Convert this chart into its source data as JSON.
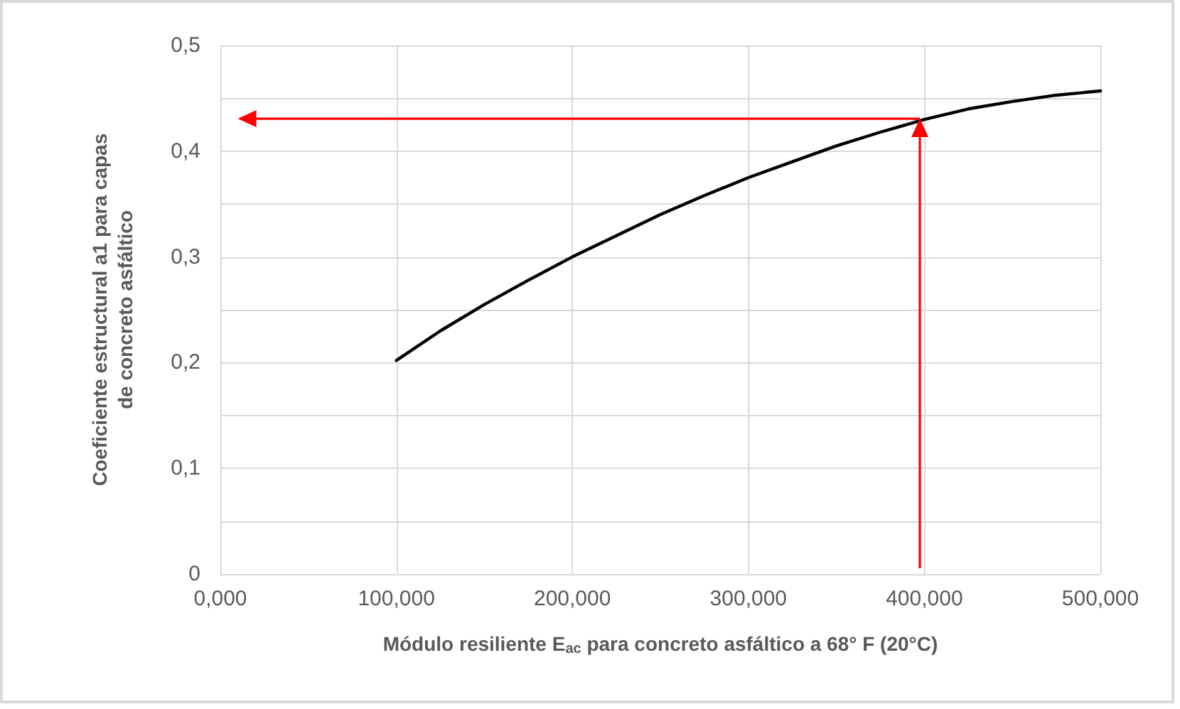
{
  "chart_data": {
    "type": "line",
    "xlabel": "Módulo resiliente E$_{ac}$ para concreto asfáltico a 68° F (20°C)",
    "ylabel": "Coeficiente estructural a1 para capas de concreto asfáltico",
    "series": [
      {
        "color": "#000000",
        "x": [
          100,
          125,
          150,
          175,
          200,
          225,
          250,
          275,
          300,
          325,
          350,
          375,
          400,
          425,
          450,
          475,
          500
        ],
        "values": [
          0.202,
          0.23,
          0.255,
          0.278,
          0.3,
          0.32,
          0.34,
          0.358,
          0.375,
          0.39,
          0.405,
          0.418,
          0.43,
          0.44,
          0.447,
          0.453,
          0.457
        ]
      }
    ],
    "xlim": [
      0,
      500
    ],
    "xticks": [
      {
        "value": 0,
        "label": "0,000"
      },
      {
        "value": 100,
        "label": "100,000"
      },
      {
        "value": 200,
        "label": "200,000"
      },
      {
        "value": 300,
        "label": "300,000"
      },
      {
        "value": 400,
        "label": "400,000"
      },
      {
        "value": 500,
        "label": "500,000"
      }
    ],
    "ylim": [
      0,
      0.5
    ],
    "yticks": [
      0,
      {
        "value": 0.05,
        "label": null
      },
      {
        "value": 0.1,
        "label": "0,1"
      },
      {
        "value": 0.15,
        "label": null
      },
      {
        "value": 0.2,
        "label": "0,2"
      },
      {
        "value": 0.25,
        "label": null
      },
      {
        "value": 0.3,
        "label": "0,3"
      },
      {
        "value": 0.35,
        "label": null
      },
      {
        "value": 0.4,
        "label": "0,4"
      },
      {
        "value": 0.45,
        "label": null
      },
      {
        "value": 0.5,
        "label": "0,5"
      }
    ],
    "grid": true,
    "marker": "none",
    "line_style": "solid"
  }
}
